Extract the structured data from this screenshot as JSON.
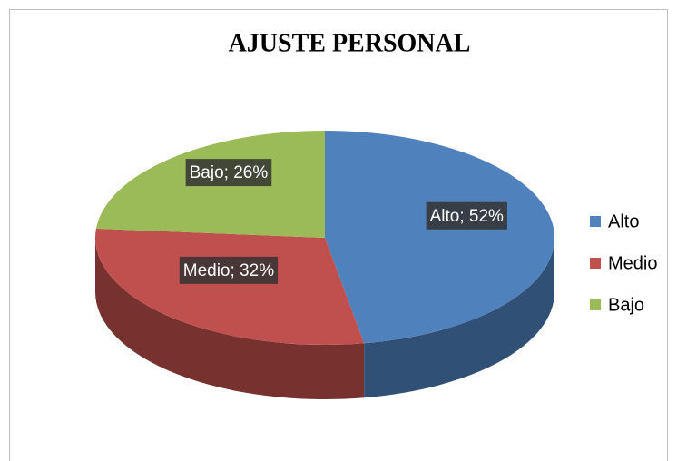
{
  "chart_data": {
    "type": "pie",
    "title": "AJUSTE PERSONAL",
    "categories": [
      "Alto",
      "Medio",
      "Bajo"
    ],
    "values": [
      52,
      32,
      26
    ],
    "value_labels": [
      "Alto; 52%",
      "Medio; 32%",
      "Bajo; 26%"
    ],
    "colors": [
      "#4f81bd",
      "#c0504d",
      "#9bbb59"
    ],
    "legend": "right"
  }
}
